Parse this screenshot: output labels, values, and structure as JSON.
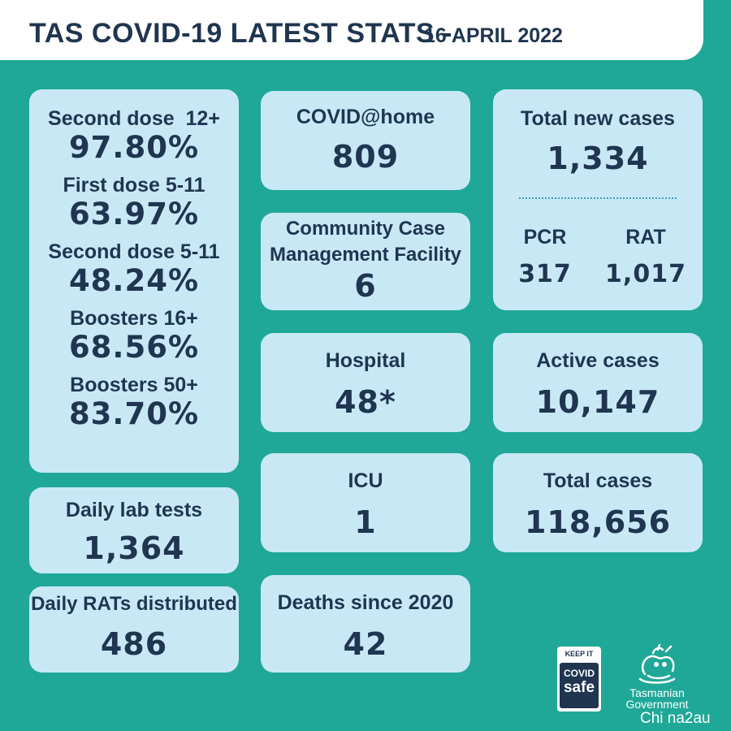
{
  "header": {
    "title": "TAS COVID-19 LATEST STATS -",
    "date": "16 APRIL 2022"
  },
  "vaccination": [
    {
      "label": "Second dose  12+",
      "value": "97.80%"
    },
    {
      "label": "First dose 5-11",
      "value": "63.97%"
    },
    {
      "label": "Second dose 5-11",
      "value": "48.24%"
    },
    {
      "label": "Boosters 16+",
      "value": "68.56%"
    },
    {
      "label": "Boosters 50+",
      "value": "83.70%"
    }
  ],
  "daily_lab_tests": {
    "label": "Daily lab tests",
    "value": "1,364"
  },
  "daily_rats": {
    "label": "Daily RATs distributed",
    "value": "486"
  },
  "covid_at_home": {
    "label": "COVID@home",
    "value": "809"
  },
  "ccmf": {
    "label_line1": "Community Case",
    "label_line2": "Management Facility",
    "value": "6"
  },
  "hospital": {
    "label": "Hospital",
    "value": "48*"
  },
  "icu": {
    "label": "ICU",
    "value": "1"
  },
  "deaths": {
    "label": "Deaths since 2020",
    "value": "42"
  },
  "new_cases": {
    "label": "Total new cases",
    "value": "1,334",
    "pcr_label": "PCR",
    "pcr_value": "317",
    "rat_label": "RAT",
    "rat_value": "1,017"
  },
  "active_cases": {
    "label": "Active cases",
    "value": "10,147"
  },
  "total_cases": {
    "label": "Total cases",
    "value": "118,656"
  },
  "logos": {
    "covidsafe_keep": "KEEP IT",
    "covidsafe_covid": "COVID",
    "covidsafe_safe": "safe",
    "tas_line1": "Tasmanian",
    "tas_line2": "Government"
  },
  "watermark": "Chi na2au"
}
